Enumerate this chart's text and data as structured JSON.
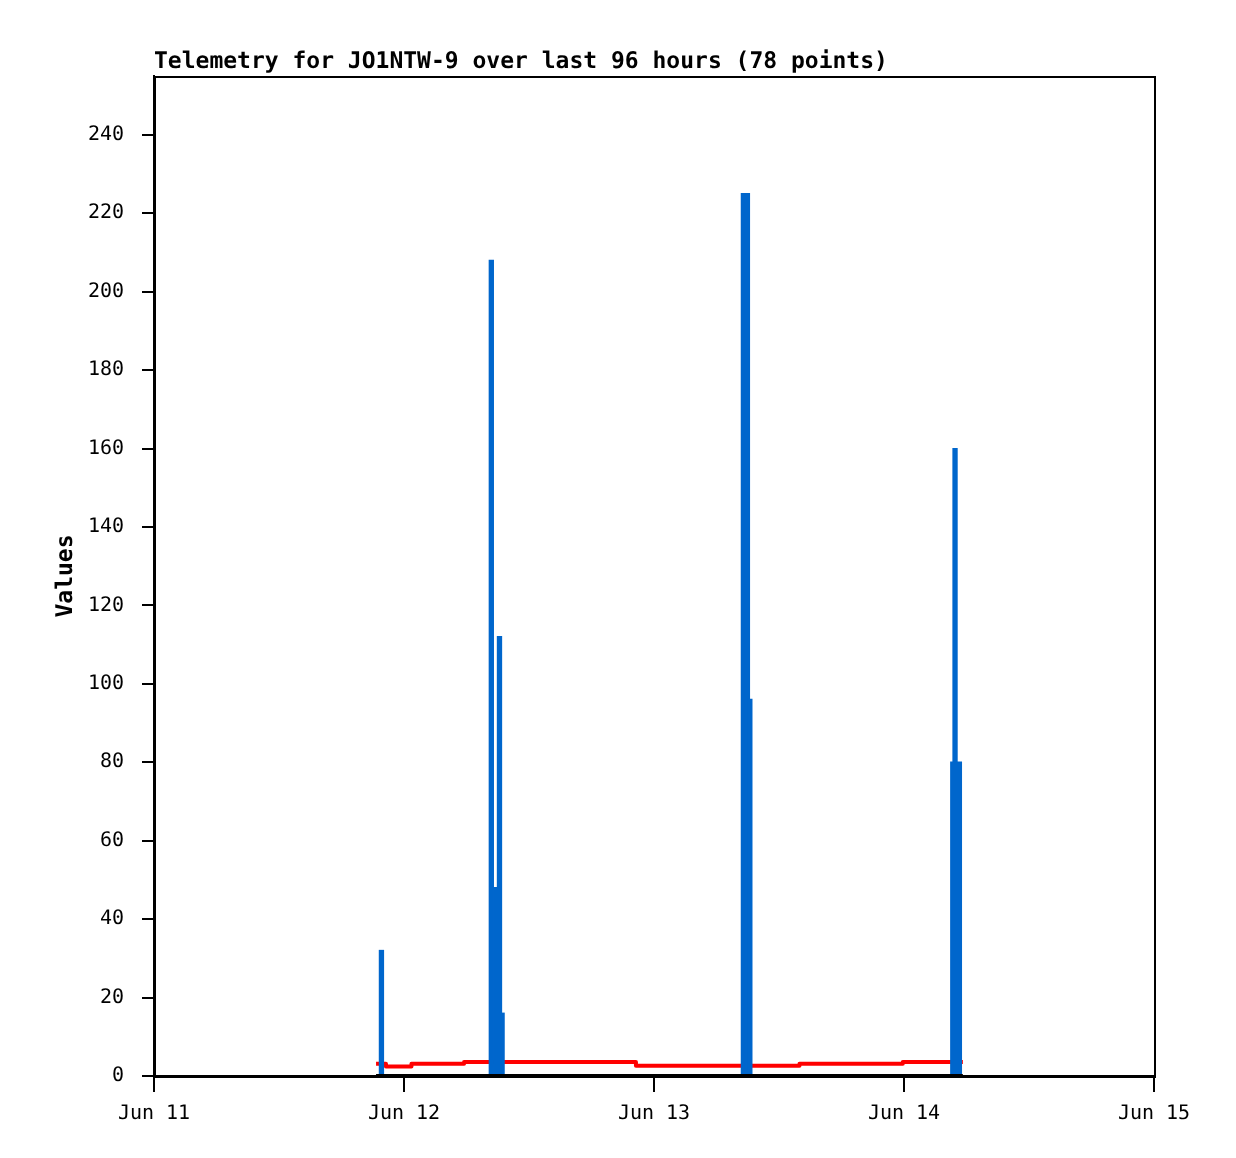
{
  "chart_data": {
    "type": "line",
    "title": "Telemetry for JO1NTW-9 over last 96 hours (78 points)",
    "ylabel": "Values",
    "xlim": [
      "--06-11",
      "--06-15"
    ],
    "xticks": [
      {
        "value": "--06-11",
        "label": "Jun 11"
      },
      {
        "value": "--06-12",
        "label": "Jun 12"
      },
      {
        "value": "--06-13",
        "label": "Jun 13"
      },
      {
        "value": "--06-14",
        "label": "Jun 14"
      },
      {
        "value": "--06-15",
        "label": "Jun 15"
      }
    ],
    "ylim": [
      0,
      255
    ],
    "yticks": [
      0,
      20,
      40,
      60,
      80,
      100,
      120,
      140,
      160,
      180,
      200,
      220,
      240
    ],
    "series": [
      {
        "type": "step",
        "color": "#ff0000",
        "x": [
          "--06-11T21:19",
          "--06-11T22:16",
          "--06-12T00:43",
          "--06-12T05:46",
          "--06-12T22:16",
          "--06-13T13:58",
          "--06-13T23:53",
          "--06-14T05:39"
        ],
        "values": [
          3.1,
          2.4,
          3.1,
          3.6,
          2.6,
          3.1,
          3.6,
          3.6
        ]
      },
      {
        "type": "bar",
        "color": "#0066cc",
        "x": [
          "--06-11T21:50",
          "--06-12T08:23",
          "--06-12T08:50",
          "--06-12T09:10",
          "--06-12T09:25",
          "--06-13T08:35",
          "--06-13T08:58",
          "--06-13T09:12",
          "--06-14T04:41",
          "--06-14T04:54",
          "--06-14T05:19"
        ],
        "values": [
          32,
          208,
          48,
          112,
          16,
          225,
          225,
          96,
          80,
          160,
          80
        ]
      },
      {
        "color": "#000000",
        "x": [
          "--06-11T21:19",
          "--06-14T05:39"
        ],
        "values": [
          0,
          0
        ]
      }
    ]
  }
}
